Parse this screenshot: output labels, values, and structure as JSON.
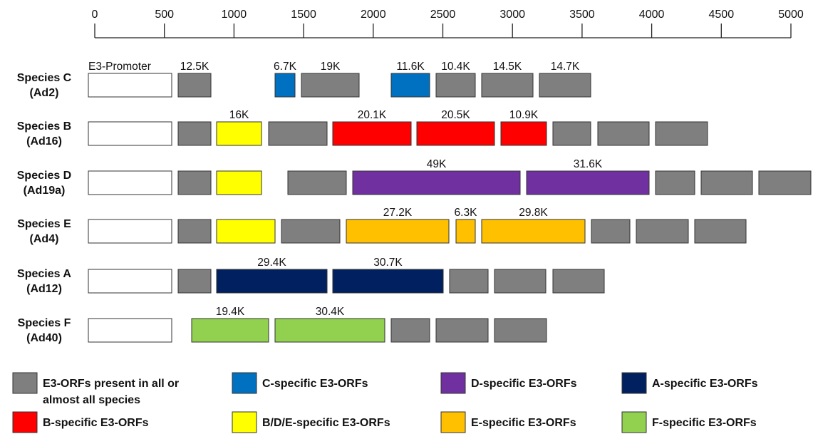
{
  "scale": {
    "ticks": [
      "0",
      "500",
      "1000",
      "1500",
      "2000",
      "2500",
      "3000",
      "3500",
      "4000",
      "4500",
      "5000"
    ]
  },
  "colors": {
    "common": "#7f7f7f",
    "C": "#0070c0",
    "BDE": "#ffff00",
    "B": "#ff0000",
    "D": "#7030a0",
    "E": "#ffc000",
    "A": "#002060",
    "F": "#92d050",
    "promoter": "#ffffff"
  },
  "species": [
    {
      "name": "Species C",
      "serotype": "(Ad2)",
      "promoter_label": "E3-Promoter",
      "orfs": [
        {
          "label": "12.5K",
          "type": "common"
        },
        {
          "label": "6.7K",
          "type": "C"
        },
        {
          "label": "19K",
          "type": "common"
        },
        {
          "label": "11.6K",
          "type": "C"
        },
        {
          "label": "10.4K",
          "type": "common"
        },
        {
          "label": "14.5K",
          "type": "common"
        },
        {
          "label": "14.7K",
          "type": "common"
        }
      ]
    },
    {
      "name": "Species B",
      "serotype": "(Ad16)",
      "orfs": [
        {
          "label": "",
          "type": "common"
        },
        {
          "label": "16K",
          "type": "BDE"
        },
        {
          "label": "",
          "type": "common"
        },
        {
          "label": "20.1K",
          "type": "B"
        },
        {
          "label": "20.5K",
          "type": "B"
        },
        {
          "label": "10.9K",
          "type": "B"
        },
        {
          "label": "",
          "type": "common"
        },
        {
          "label": "",
          "type": "common"
        },
        {
          "label": "",
          "type": "common"
        }
      ]
    },
    {
      "name": "Species D",
      "serotype": "(Ad19a)",
      "orfs": [
        {
          "label": "",
          "type": "common"
        },
        {
          "label": "",
          "type": "BDE"
        },
        {
          "label": "",
          "type": "common"
        },
        {
          "label": "49K",
          "type": "D"
        },
        {
          "label": "31.6K",
          "type": "D"
        },
        {
          "label": "",
          "type": "common"
        },
        {
          "label": "",
          "type": "common"
        },
        {
          "label": "",
          "type": "common"
        }
      ]
    },
    {
      "name": "Species E",
      "serotype": "(Ad4)",
      "orfs": [
        {
          "label": "",
          "type": "common"
        },
        {
          "label": "",
          "type": "BDE"
        },
        {
          "label": "",
          "type": "common"
        },
        {
          "label": "27.2K",
          "type": "E"
        },
        {
          "label": "6.3K",
          "type": "E"
        },
        {
          "label": "29.8K",
          "type": "E"
        },
        {
          "label": "",
          "type": "common"
        },
        {
          "label": "",
          "type": "common"
        },
        {
          "label": "",
          "type": "common"
        }
      ]
    },
    {
      "name": "Species A",
      "serotype": "(Ad12)",
      "orfs": [
        {
          "label": "",
          "type": "common"
        },
        {
          "label": "29.4K",
          "type": "A"
        },
        {
          "label": "30.7K",
          "type": "A"
        },
        {
          "label": "",
          "type": "common"
        },
        {
          "label": "",
          "type": "common"
        },
        {
          "label": "",
          "type": "common"
        }
      ]
    },
    {
      "name": "Species F",
      "serotype": "(Ad40)",
      "orfs": [
        {
          "label": "19.4K",
          "type": "F"
        },
        {
          "label": "30.4K",
          "type": "F"
        },
        {
          "label": "",
          "type": "common"
        },
        {
          "label": "",
          "type": "common"
        },
        {
          "label": "",
          "type": "common"
        }
      ]
    }
  ],
  "legend": [
    {
      "type": "common",
      "lines": [
        "E3-ORFs present in all or",
        "almost all species"
      ]
    },
    {
      "type": "C",
      "lines": [
        "C-specific E3-ORFs"
      ]
    },
    {
      "type": "D",
      "lines": [
        "D-specific E3-ORFs"
      ]
    },
    {
      "type": "A",
      "lines": [
        "A-specific E3-ORFs"
      ]
    },
    {
      "type": "B",
      "lines": [
        "B-specific E3-ORFs"
      ]
    },
    {
      "type": "BDE",
      "lines": [
        "B/D/E-specific E3-ORFs"
      ]
    },
    {
      "type": "E",
      "lines": [
        "E-specific E3-ORFs"
      ]
    },
    {
      "type": "F",
      "lines": [
        "F-specific E3-ORFs"
      ]
    }
  ]
}
